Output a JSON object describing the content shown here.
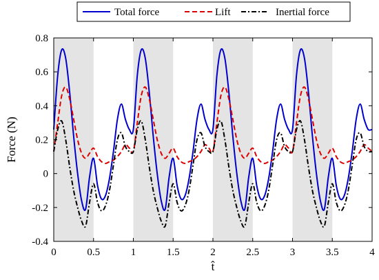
{
  "chart_data": {
    "type": "line",
    "xlabel": "t̂",
    "ylabel": "Force (N)",
    "xlim": [
      0,
      4
    ],
    "ylim": [
      -0.4,
      0.8
    ],
    "x_ticks": [
      "0",
      "0.5",
      "1",
      "1.5",
      "2",
      "2.5",
      "3",
      "3.5",
      "4"
    ],
    "y_ticks": [
      "-0.4",
      "-0.2",
      "0",
      "0.2",
      "0.4",
      "0.6",
      "0.8"
    ],
    "grid": false,
    "legend_position": "top",
    "shaded_intervals": [
      [
        0,
        0.5
      ],
      [
        1,
        1.5
      ],
      [
        2,
        2.5
      ],
      [
        3,
        3.5
      ]
    ],
    "shade_color": "#e4e4e4",
    "series": [
      {
        "name": "Total force",
        "color": "#0000cc",
        "dash": "solid",
        "x": [
          0,
          0.05,
          0.1,
          0.15,
          0.2,
          0.25,
          0.3,
          0.35,
          0.4,
          0.45,
          0.5,
          0.55,
          0.6,
          0.65,
          0.7,
          0.75,
          0.8,
          0.85,
          0.9,
          0.95,
          1.0
        ],
        "y": [
          0.26,
          0.58,
          0.73,
          0.68,
          0.48,
          0.22,
          0.0,
          -0.16,
          -0.21,
          -0.02,
          0.09,
          -0.07,
          -0.15,
          -0.13,
          -0.03,
          0.13,
          0.32,
          0.41,
          0.32,
          0.26,
          0.26
        ]
      },
      {
        "name": "Lift",
        "color": "#dd0000",
        "dash": "dashed",
        "x": [
          0,
          0.05,
          0.1,
          0.15,
          0.2,
          0.25,
          0.3,
          0.35,
          0.4,
          0.45,
          0.5,
          0.55,
          0.6,
          0.65,
          0.7,
          0.75,
          0.8,
          0.85,
          0.9,
          0.95,
          1.0
        ],
        "y": [
          0.13,
          0.3,
          0.46,
          0.51,
          0.44,
          0.32,
          0.2,
          0.12,
          0.09,
          0.12,
          0.15,
          0.1,
          0.07,
          0.06,
          0.07,
          0.08,
          0.1,
          0.13,
          0.17,
          0.15,
          0.13
        ]
      },
      {
        "name": "Inertial force",
        "color": "#000000",
        "dash": "dashdot",
        "x": [
          0,
          0.05,
          0.1,
          0.15,
          0.2,
          0.25,
          0.3,
          0.35,
          0.4,
          0.45,
          0.5,
          0.55,
          0.6,
          0.65,
          0.7,
          0.75,
          0.8,
          0.85,
          0.9,
          0.95,
          1.0
        ],
        "y": [
          0.13,
          0.26,
          0.31,
          0.2,
          0.04,
          -0.1,
          -0.2,
          -0.28,
          -0.31,
          -0.17,
          -0.06,
          -0.17,
          -0.22,
          -0.19,
          -0.1,
          0.05,
          0.2,
          0.24,
          0.16,
          0.13,
          0.13
        ]
      }
    ]
  }
}
